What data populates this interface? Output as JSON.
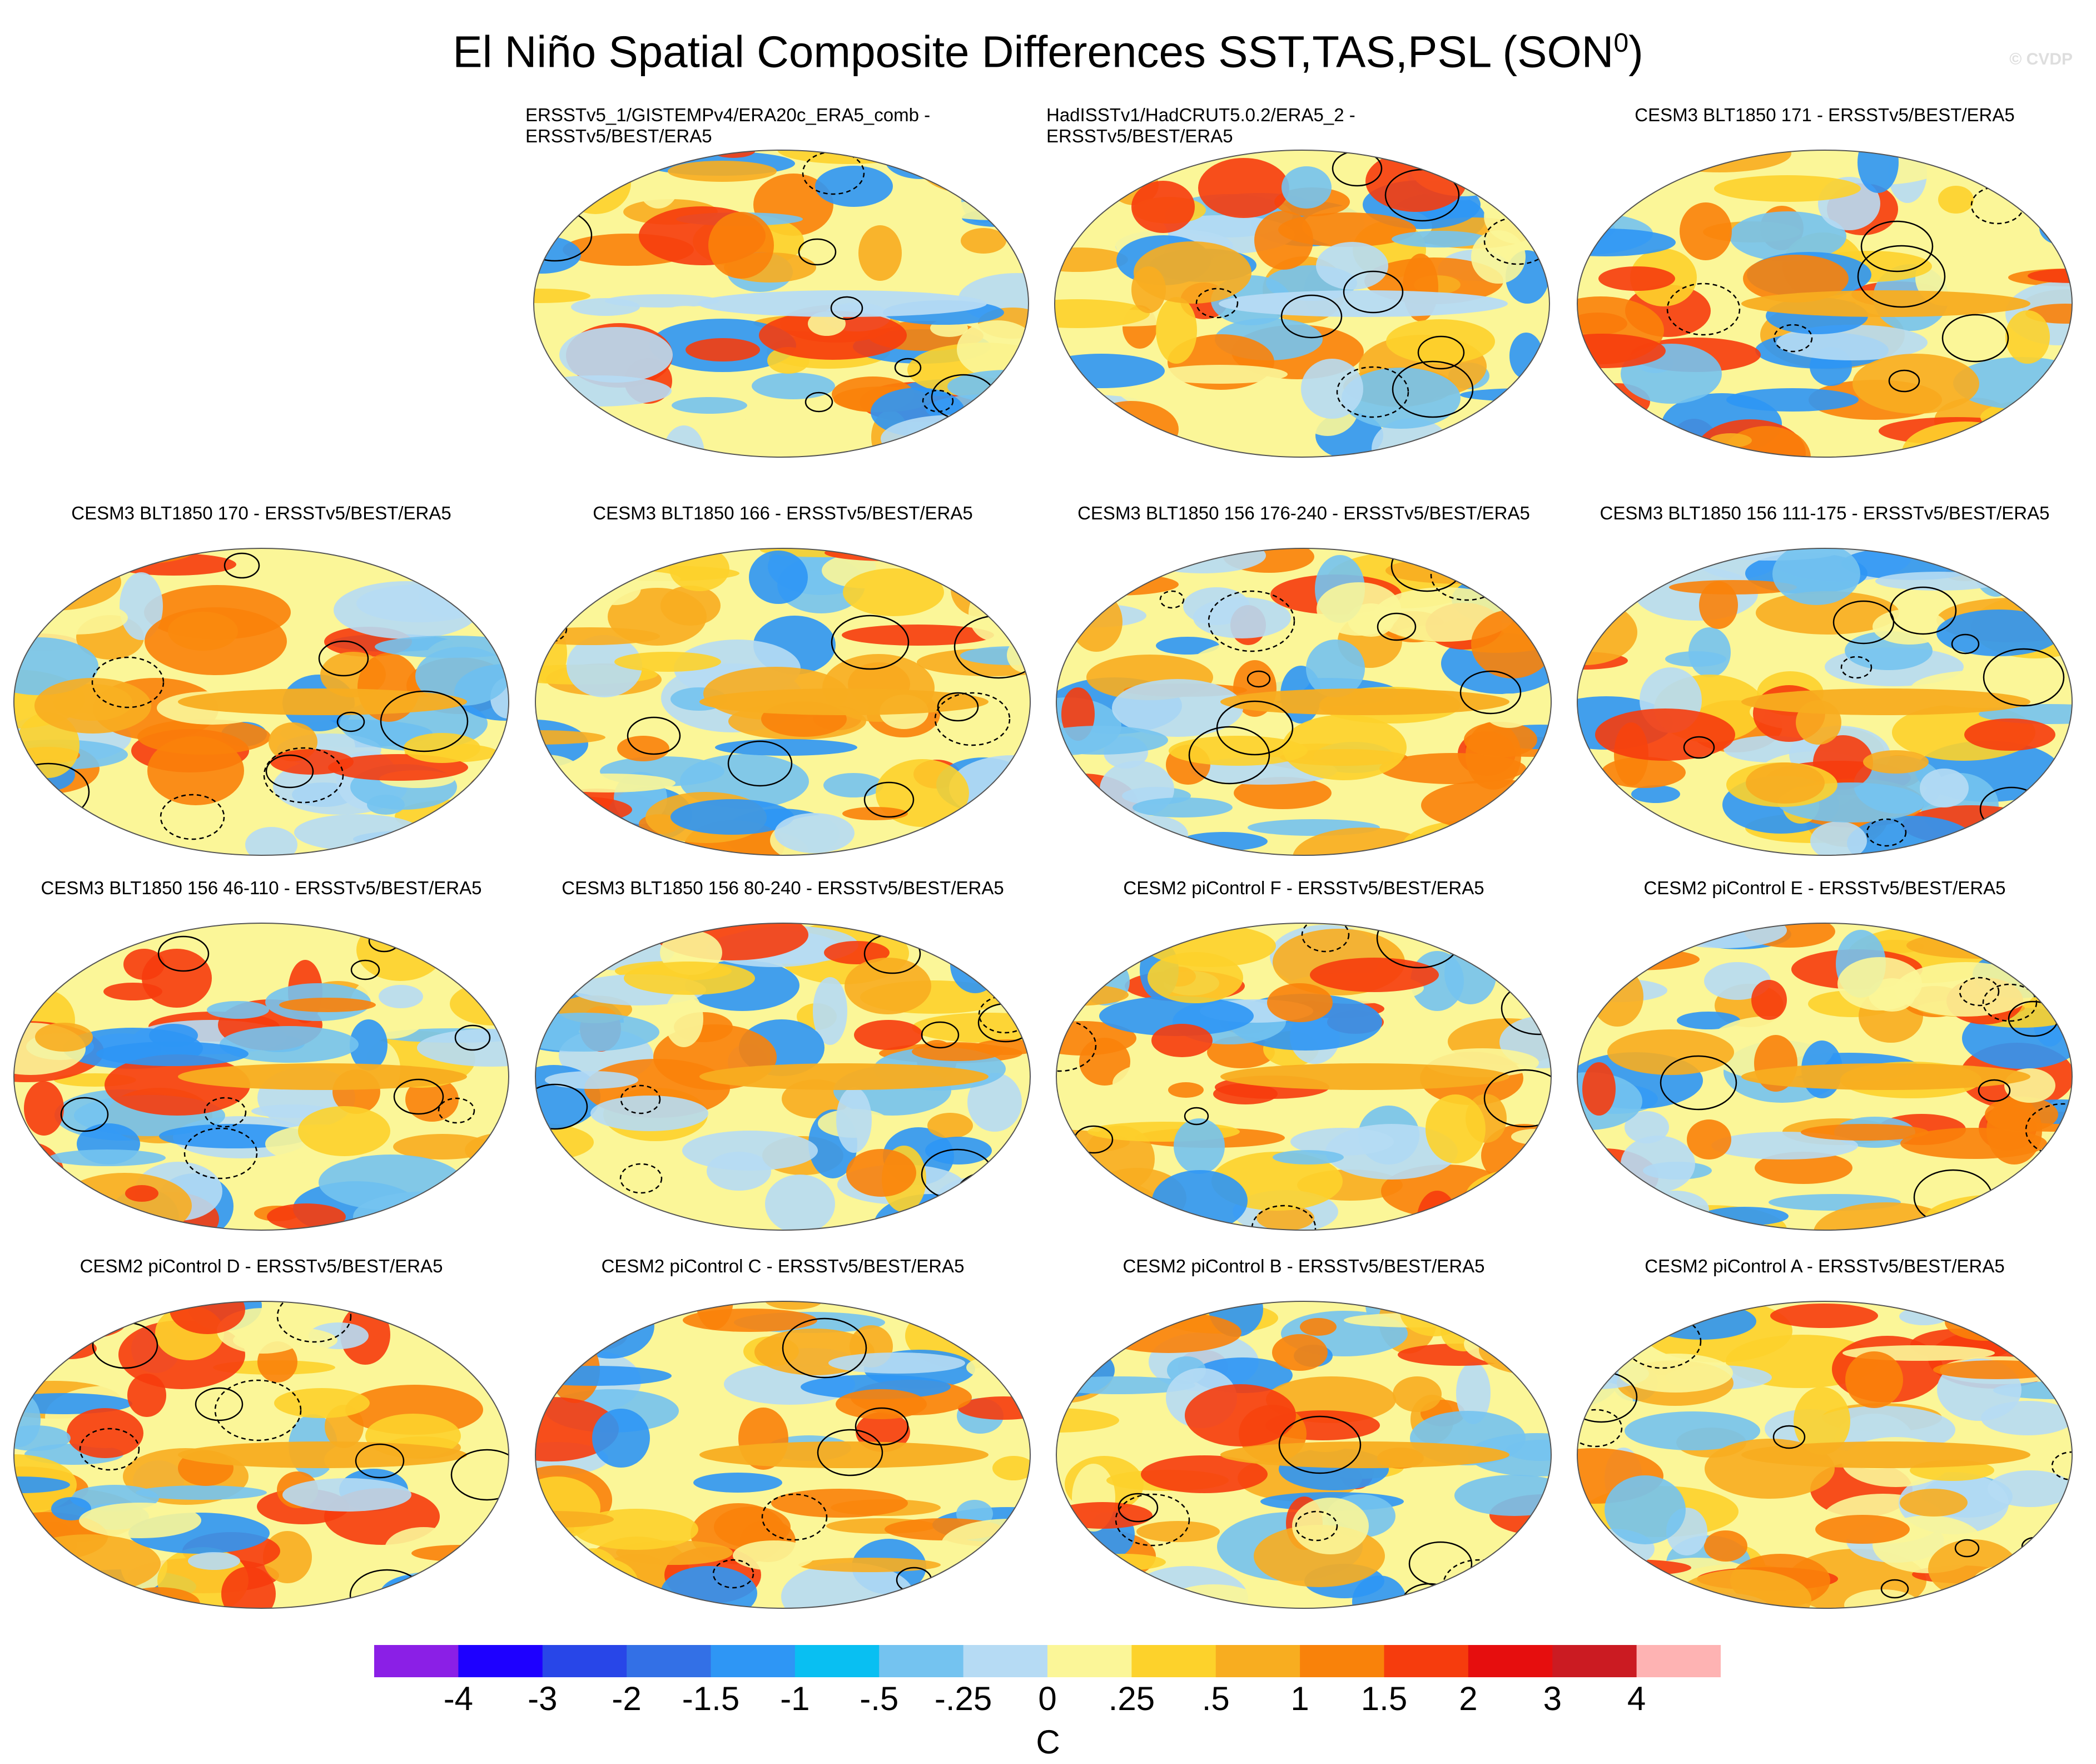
{
  "title": {
    "main": "El Niño Spatial Composite Differences SST,TAS,PSL (SON",
    "sup": "0",
    "close": ")"
  },
  "watermark": "© CVDP",
  "panels": [
    {
      "line1": "ERSSTv5_1/GISTEMPv4/ERA20c_ERA5_comb -",
      "line2": "ERSSTv5/BEST/ERA5"
    },
    {
      "line1": "HadISSTv1/HadCRUT5.0.2/ERA5_2 -",
      "line2": "ERSSTv5/BEST/ERA5"
    },
    {
      "line1": "CESM3 BLT1850 171 - ERSSTv5/BEST/ERA5",
      "line2": ""
    },
    {
      "line1": "CESM3 BLT1850 170 - ERSSTv5/BEST/ERA5",
      "line2": ""
    },
    {
      "line1": "CESM3 BLT1850 166 - ERSSTv5/BEST/ERA5",
      "line2": ""
    },
    {
      "line1": "CESM3 BLT1850 156 176-240 - ERSSTv5/BEST/ERA5",
      "line2": ""
    },
    {
      "line1": "CESM3 BLT1850 156 111-175 - ERSSTv5/BEST/ERA5",
      "line2": ""
    },
    {
      "line1": "CESM3 BLT1850 156 46-110 - ERSSTv5/BEST/ERA5",
      "line2": ""
    },
    {
      "line1": "CESM3 BLT1850 156 80-240 - ERSSTv5/BEST/ERA5",
      "line2": ""
    },
    {
      "line1": "CESM2 piControl F - ERSSTv5/BEST/ERA5",
      "line2": ""
    },
    {
      "line1": "CESM2 piControl E - ERSSTv5/BEST/ERA5",
      "line2": ""
    },
    {
      "line1": "CESM2 piControl D - ERSSTv5/BEST/ERA5",
      "line2": ""
    },
    {
      "line1": "CESM2 piControl C - ERSSTv5/BEST/ERA5",
      "line2": ""
    },
    {
      "line1": "CESM2 piControl B - ERSSTv5/BEST/ERA5",
      "line2": ""
    },
    {
      "line1": "CESM2 piControl A - ERSSTv5/BEST/ERA5",
      "line2": ""
    }
  ],
  "colorbar": {
    "colors": [
      "#8b1fe6",
      "#1e00ff",
      "#2846e8",
      "#3370e6",
      "#2e96f5",
      "#09bff2",
      "#74c3f0",
      "#b6dbf4",
      "#fbf698",
      "#fdd22b",
      "#f8ad20",
      "#f9820a",
      "#f63c0d",
      "#e60e0e",
      "#cb1b22",
      "#feb3b3"
    ],
    "labels": [
      "-4",
      "-3",
      "-2",
      "-1.5",
      "-1",
      "-.5",
      "-.25",
      "0",
      ".25",
      ".5",
      "1",
      "1.5",
      "2",
      "3",
      "4"
    ],
    "units": "C"
  }
}
